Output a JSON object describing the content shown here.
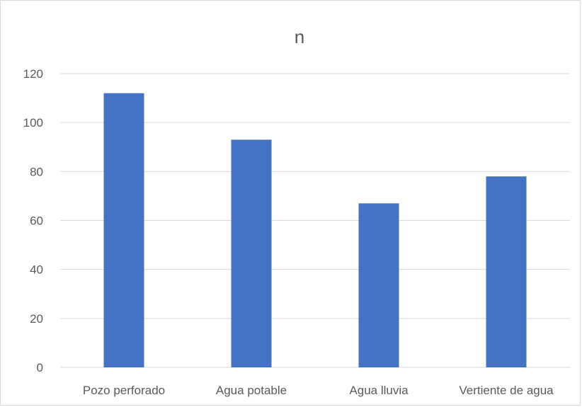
{
  "chart_data": {
    "type": "bar",
    "title": "n",
    "categories": [
      "Pozo perforado",
      "Agua potable",
      "Agua lluvia",
      "Vertiente de agua"
    ],
    "series": [
      {
        "values": [
          112,
          93,
          67,
          78
        ]
      }
    ],
    "yticks": [
      "0",
      "20",
      "40",
      "60",
      "80",
      "100",
      "120"
    ],
    "ylim": [
      0,
      120
    ],
    "grid": true,
    "legend": "none",
    "colors": {
      "bar": "#4472c4",
      "grid": "#d9d9d9",
      "text": "#595959"
    }
  }
}
